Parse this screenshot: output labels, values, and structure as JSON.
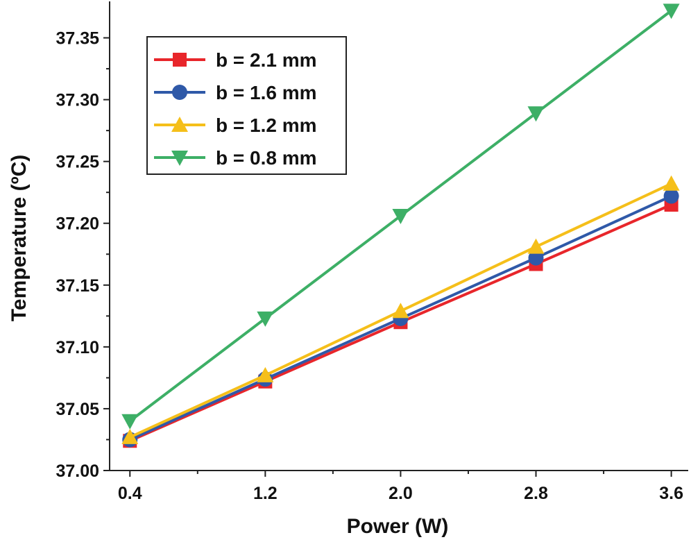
{
  "chart_data": {
    "type": "line",
    "title": "",
    "xlabel": "Power (W)",
    "ylabel": "Temperature (ºC)",
    "x": [
      0.4,
      1.2,
      2.0,
      2.8,
      3.6
    ],
    "x_tick_labels": [
      "0.4",
      "1.2",
      "2.0",
      "2.8",
      "3.6"
    ],
    "xlim": [
      0.28,
      3.7
    ],
    "ylim": [
      37.0,
      37.375
    ],
    "y_ticks": [
      37.0,
      37.05,
      37.1,
      37.15,
      37.2,
      37.25,
      37.3,
      37.35
    ],
    "y_tick_labels": [
      "37.00",
      "37.05",
      "37.10",
      "37.15",
      "37.20",
      "37.25",
      "37.30",
      "37.35"
    ],
    "grid": false,
    "legend_position": "top-left",
    "series": [
      {
        "name": "b = 2.1 mm",
        "marker": "square",
        "color": "#e8262b",
        "values": [
          37.024,
          37.072,
          37.12,
          37.167,
          37.215
        ]
      },
      {
        "name": "b = 1.6 mm",
        "marker": "circle",
        "color": "#2f59a8",
        "values": [
          37.025,
          37.074,
          37.123,
          37.172,
          37.222
        ]
      },
      {
        "name": "b = 1.2 mm",
        "marker": "triangle-up",
        "color": "#f5bf1a",
        "values": [
          37.027,
          37.077,
          37.129,
          37.181,
          37.232
        ]
      },
      {
        "name": "b = 0.8 mm",
        "marker": "triangle-down",
        "color": "#3daf66",
        "values": [
          37.04,
          37.123,
          37.206,
          37.289,
          37.372
        ]
      }
    ]
  }
}
